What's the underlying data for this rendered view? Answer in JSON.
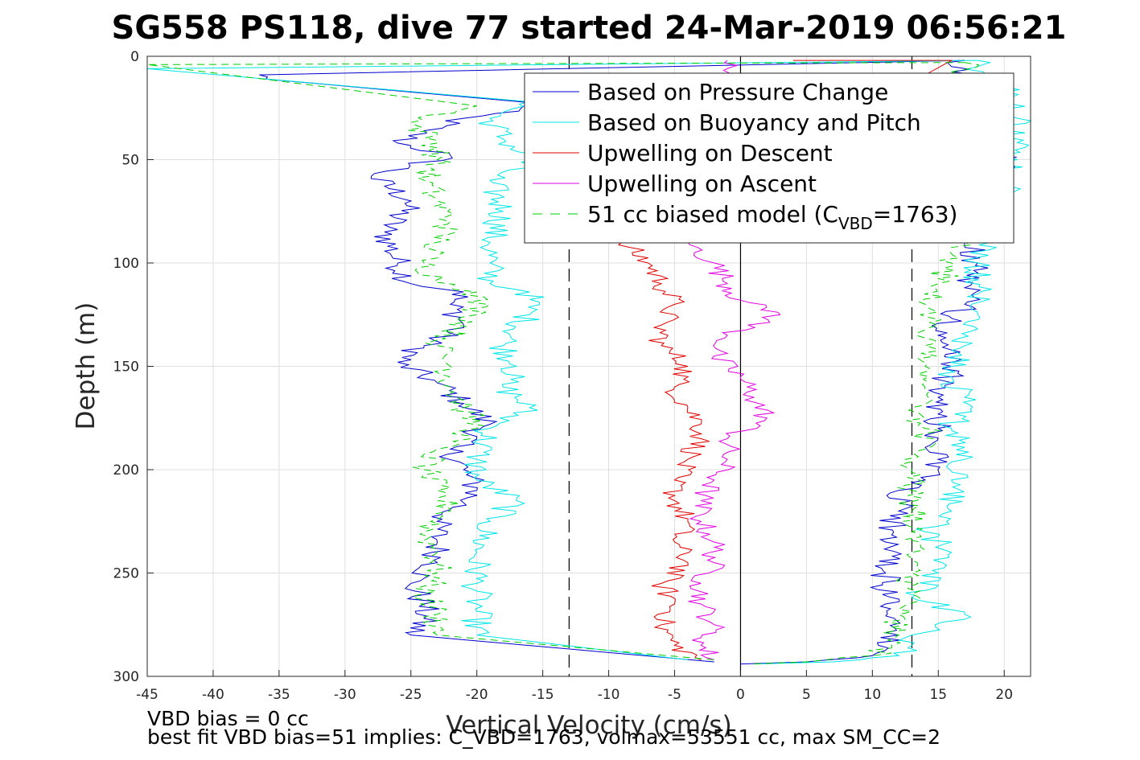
{
  "chart_data": {
    "type": "line",
    "title": "SG558 PS118, dive 77 started 24-Mar-2019 06:56:21",
    "xlabel": "Vertical Velocity (cm/s)",
    "ylabel": "Depth (m)",
    "xlim": [
      -45,
      22
    ],
    "ylim": [
      0,
      300
    ],
    "y_reversed": true,
    "grid": true,
    "xticks": [
      -45,
      -40,
      -35,
      -30,
      -25,
      -20,
      -15,
      -10,
      -5,
      0,
      5,
      10,
      15,
      20
    ],
    "yticks": [
      0,
      50,
      100,
      150,
      200,
      250,
      300
    ],
    "reference_lines": [
      {
        "x": 0,
        "style": "solid",
        "color": "#000000"
      },
      {
        "x": -13,
        "style": "dashed",
        "color": "#000000"
      },
      {
        "x": 13,
        "style": "dashed",
        "color": "#000000"
      }
    ],
    "legend_position": "top-right",
    "legend": [
      {
        "label": "Based on Pressure Change",
        "color": "#0000cc",
        "style": "solid"
      },
      {
        "label": "Based on Buoyancy and Pitch",
        "color": "#00e5e5",
        "style": "solid"
      },
      {
        "label": "Upwelling on Descent",
        "color": "#e00000",
        "style": "solid"
      },
      {
        "label": "Upwelling on Ascent",
        "color": "#e000e0",
        "style": "solid"
      },
      {
        "label_main": "51 cc biased model (C",
        "label_sub": "VBD",
        "label_end": "=1763)",
        "color": "#00cc00",
        "style": "dashed"
      }
    ],
    "series": [
      {
        "color": "#0000cc",
        "style": "solid",
        "descent": [
          [
            17,
            2
          ],
          [
            -36.5,
            9
          ],
          [
            -36,
            11
          ],
          [
            -15,
            23
          ],
          [
            -21,
            30
          ],
          [
            -24,
            36
          ],
          [
            -26,
            42
          ],
          [
            -22,
            48
          ],
          [
            -28,
            58
          ],
          [
            -25,
            70
          ],
          [
            -27,
            85
          ],
          [
            -26,
            100
          ],
          [
            -25,
            110
          ],
          [
            -21,
            114
          ],
          [
            -22,
            120
          ],
          [
            -21,
            130
          ],
          [
            -24,
            140
          ],
          [
            -26,
            148
          ],
          [
            -23,
            158
          ],
          [
            -21,
            168
          ],
          [
            -19,
            178
          ],
          [
            -22,
            190
          ],
          [
            -21,
            200
          ],
          [
            -20,
            210
          ],
          [
            -21,
            216
          ],
          [
            -23,
            225
          ],
          [
            -23,
            235
          ],
          [
            -23,
            245
          ],
          [
            -25,
            255
          ],
          [
            -24,
            265
          ],
          [
            -24,
            272
          ],
          [
            -25,
            280
          ],
          [
            -2,
            293
          ]
        ],
        "ascent": [
          [
            0,
            294
          ],
          [
            5,
            293
          ],
          [
            10,
            290
          ],
          [
            12,
            280
          ],
          [
            11,
            265
          ],
          [
            11,
            250
          ],
          [
            11,
            235
          ],
          [
            12,
            220
          ],
          [
            12,
            210
          ],
          [
            14,
            205
          ],
          [
            15,
            195
          ],
          [
            15,
            180
          ],
          [
            15,
            165
          ],
          [
            16,
            150
          ],
          [
            15,
            135
          ],
          [
            17,
            120
          ],
          [
            17,
            112
          ],
          [
            18,
            100
          ],
          [
            17,
            90
          ],
          [
            20,
            70
          ],
          [
            20,
            50
          ],
          [
            19,
            30
          ],
          [
            18,
            15
          ],
          [
            16,
            5
          ],
          [
            17,
            2
          ]
        ]
      },
      {
        "color": "#00e5e5",
        "style": "solid",
        "descent": [
          [
            18,
            2
          ],
          [
            -45,
            6
          ],
          [
            -16,
            22
          ],
          [
            -19,
            30
          ],
          [
            -18,
            40
          ],
          [
            -16,
            50
          ],
          [
            -19,
            60
          ],
          [
            -18,
            75
          ],
          [
            -19,
            90
          ],
          [
            -19,
            100
          ],
          [
            -19,
            110
          ],
          [
            -16,
            114
          ],
          [
            -16,
            125
          ],
          [
            -18,
            140
          ],
          [
            -17,
            150
          ],
          [
            -18,
            160
          ],
          [
            -16,
            170
          ],
          [
            -19,
            180
          ],
          [
            -20,
            195
          ],
          [
            -20,
            205
          ],
          [
            -17,
            215
          ],
          [
            -19,
            225
          ],
          [
            -20,
            240
          ],
          [
            -20,
            255
          ],
          [
            -20,
            265
          ],
          [
            -20,
            280
          ],
          [
            -4,
            292
          ]
        ],
        "ascent": [
          [
            1,
            294
          ],
          [
            7,
            293
          ],
          [
            12,
            290
          ],
          [
            13,
            280
          ],
          [
            17,
            270
          ],
          [
            13,
            262
          ],
          [
            15,
            250
          ],
          [
            16,
            240
          ],
          [
            14,
            230
          ],
          [
            16,
            220
          ],
          [
            16,
            205
          ],
          [
            17,
            195
          ],
          [
            16,
            180
          ],
          [
            17,
            165
          ],
          [
            16,
            155
          ],
          [
            17,
            140
          ],
          [
            18,
            125
          ],
          [
            18,
            115
          ],
          [
            18,
            100
          ],
          [
            19,
            90
          ],
          [
            20,
            70
          ],
          [
            21,
            50
          ],
          [
            21,
            30
          ],
          [
            20,
            15
          ],
          [
            18,
            5
          ],
          [
            18,
            2
          ]
        ]
      },
      {
        "color": "#e00000",
        "style": "solid",
        "descent": [
          [
            4,
            2
          ],
          [
            16,
            2
          ],
          [
            -9,
            90
          ],
          [
            -7,
            100
          ],
          [
            -6,
            110
          ],
          [
            -5,
            120
          ],
          [
            -6,
            130
          ],
          [
            -6,
            140
          ],
          [
            -4,
            150
          ],
          [
            -5,
            160
          ],
          [
            -4,
            170
          ],
          [
            -3,
            178
          ],
          [
            -3,
            185
          ],
          [
            -4,
            195
          ],
          [
            -5,
            205
          ],
          [
            -5,
            215
          ],
          [
            -4,
            225
          ],
          [
            -5,
            235
          ],
          [
            -4,
            245
          ],
          [
            -6,
            255
          ],
          [
            -5,
            265
          ],
          [
            -6,
            275
          ],
          [
            -5,
            285
          ],
          [
            -3,
            292
          ]
        ]
      },
      {
        "color": "#e000e0",
        "style": "solid",
        "ascent": [
          [
            -1,
            2
          ],
          [
            -4,
            90
          ],
          [
            -2,
            100
          ],
          [
            -1,
            110
          ],
          [
            0,
            118
          ],
          [
            3,
            125
          ],
          [
            -1,
            135
          ],
          [
            -2,
            145
          ],
          [
            0,
            155
          ],
          [
            1,
            165
          ],
          [
            2,
            175
          ],
          [
            -1,
            185
          ],
          [
            -1,
            195
          ],
          [
            -2,
            205
          ],
          [
            -3,
            215
          ],
          [
            -3,
            225
          ],
          [
            -2,
            235
          ],
          [
            -2,
            245
          ],
          [
            -3,
            255
          ],
          [
            -3,
            265
          ],
          [
            -2,
            275
          ],
          [
            -3,
            285
          ],
          [
            -2,
            292
          ]
        ]
      },
      {
        "color": "#00cc00",
        "style": "dashed",
        "descent": [
          [
            17,
            3
          ],
          [
            -45,
            4
          ],
          [
            -20,
            24
          ],
          [
            -25,
            32
          ],
          [
            -23,
            42
          ],
          [
            -23,
            50
          ],
          [
            -24,
            60
          ],
          [
            -23,
            70
          ],
          [
            -22,
            80
          ],
          [
            -23,
            90
          ],
          [
            -24,
            100
          ],
          [
            -23,
            108
          ],
          [
            -20,
            114
          ],
          [
            -20,
            125
          ],
          [
            -23,
            140
          ],
          [
            -22,
            150
          ],
          [
            -22,
            160
          ],
          [
            -21,
            170
          ],
          [
            -20,
            180
          ],
          [
            -23,
            190
          ],
          [
            -24,
            200
          ],
          [
            -23,
            210
          ],
          [
            -22,
            220
          ],
          [
            -24,
            230
          ],
          [
            -23,
            240
          ],
          [
            -23,
            250
          ],
          [
            -24,
            260
          ],
          [
            -23,
            270
          ],
          [
            -23,
            280
          ],
          [
            -2,
            292
          ]
        ],
        "ascent": [
          [
            1,
            294
          ],
          [
            5,
            293
          ],
          [
            10,
            290
          ],
          [
            12,
            280
          ],
          [
            12,
            270
          ],
          [
            13,
            260
          ],
          [
            13,
            250
          ],
          [
            13,
            240
          ],
          [
            13,
            230
          ],
          [
            13,
            220
          ],
          [
            13,
            210
          ],
          [
            13,
            200
          ],
          [
            14,
            190
          ],
          [
            14,
            180
          ],
          [
            13,
            170
          ],
          [
            14,
            160
          ],
          [
            14,
            150
          ],
          [
            14,
            140
          ],
          [
            15,
            130
          ],
          [
            14,
            120
          ],
          [
            15,
            110
          ],
          [
            16,
            100
          ],
          [
            17,
            90
          ],
          [
            18,
            70
          ],
          [
            18,
            50
          ],
          [
            18,
            30
          ],
          [
            17,
            10
          ],
          [
            17,
            3
          ]
        ]
      }
    ]
  },
  "notes": {
    "line1": "VBD bias = 0 cc",
    "line2": "best fit VBD bias=51 implies: C_VBD=1763, volmax=53551 cc, max SM_CC=2"
  }
}
